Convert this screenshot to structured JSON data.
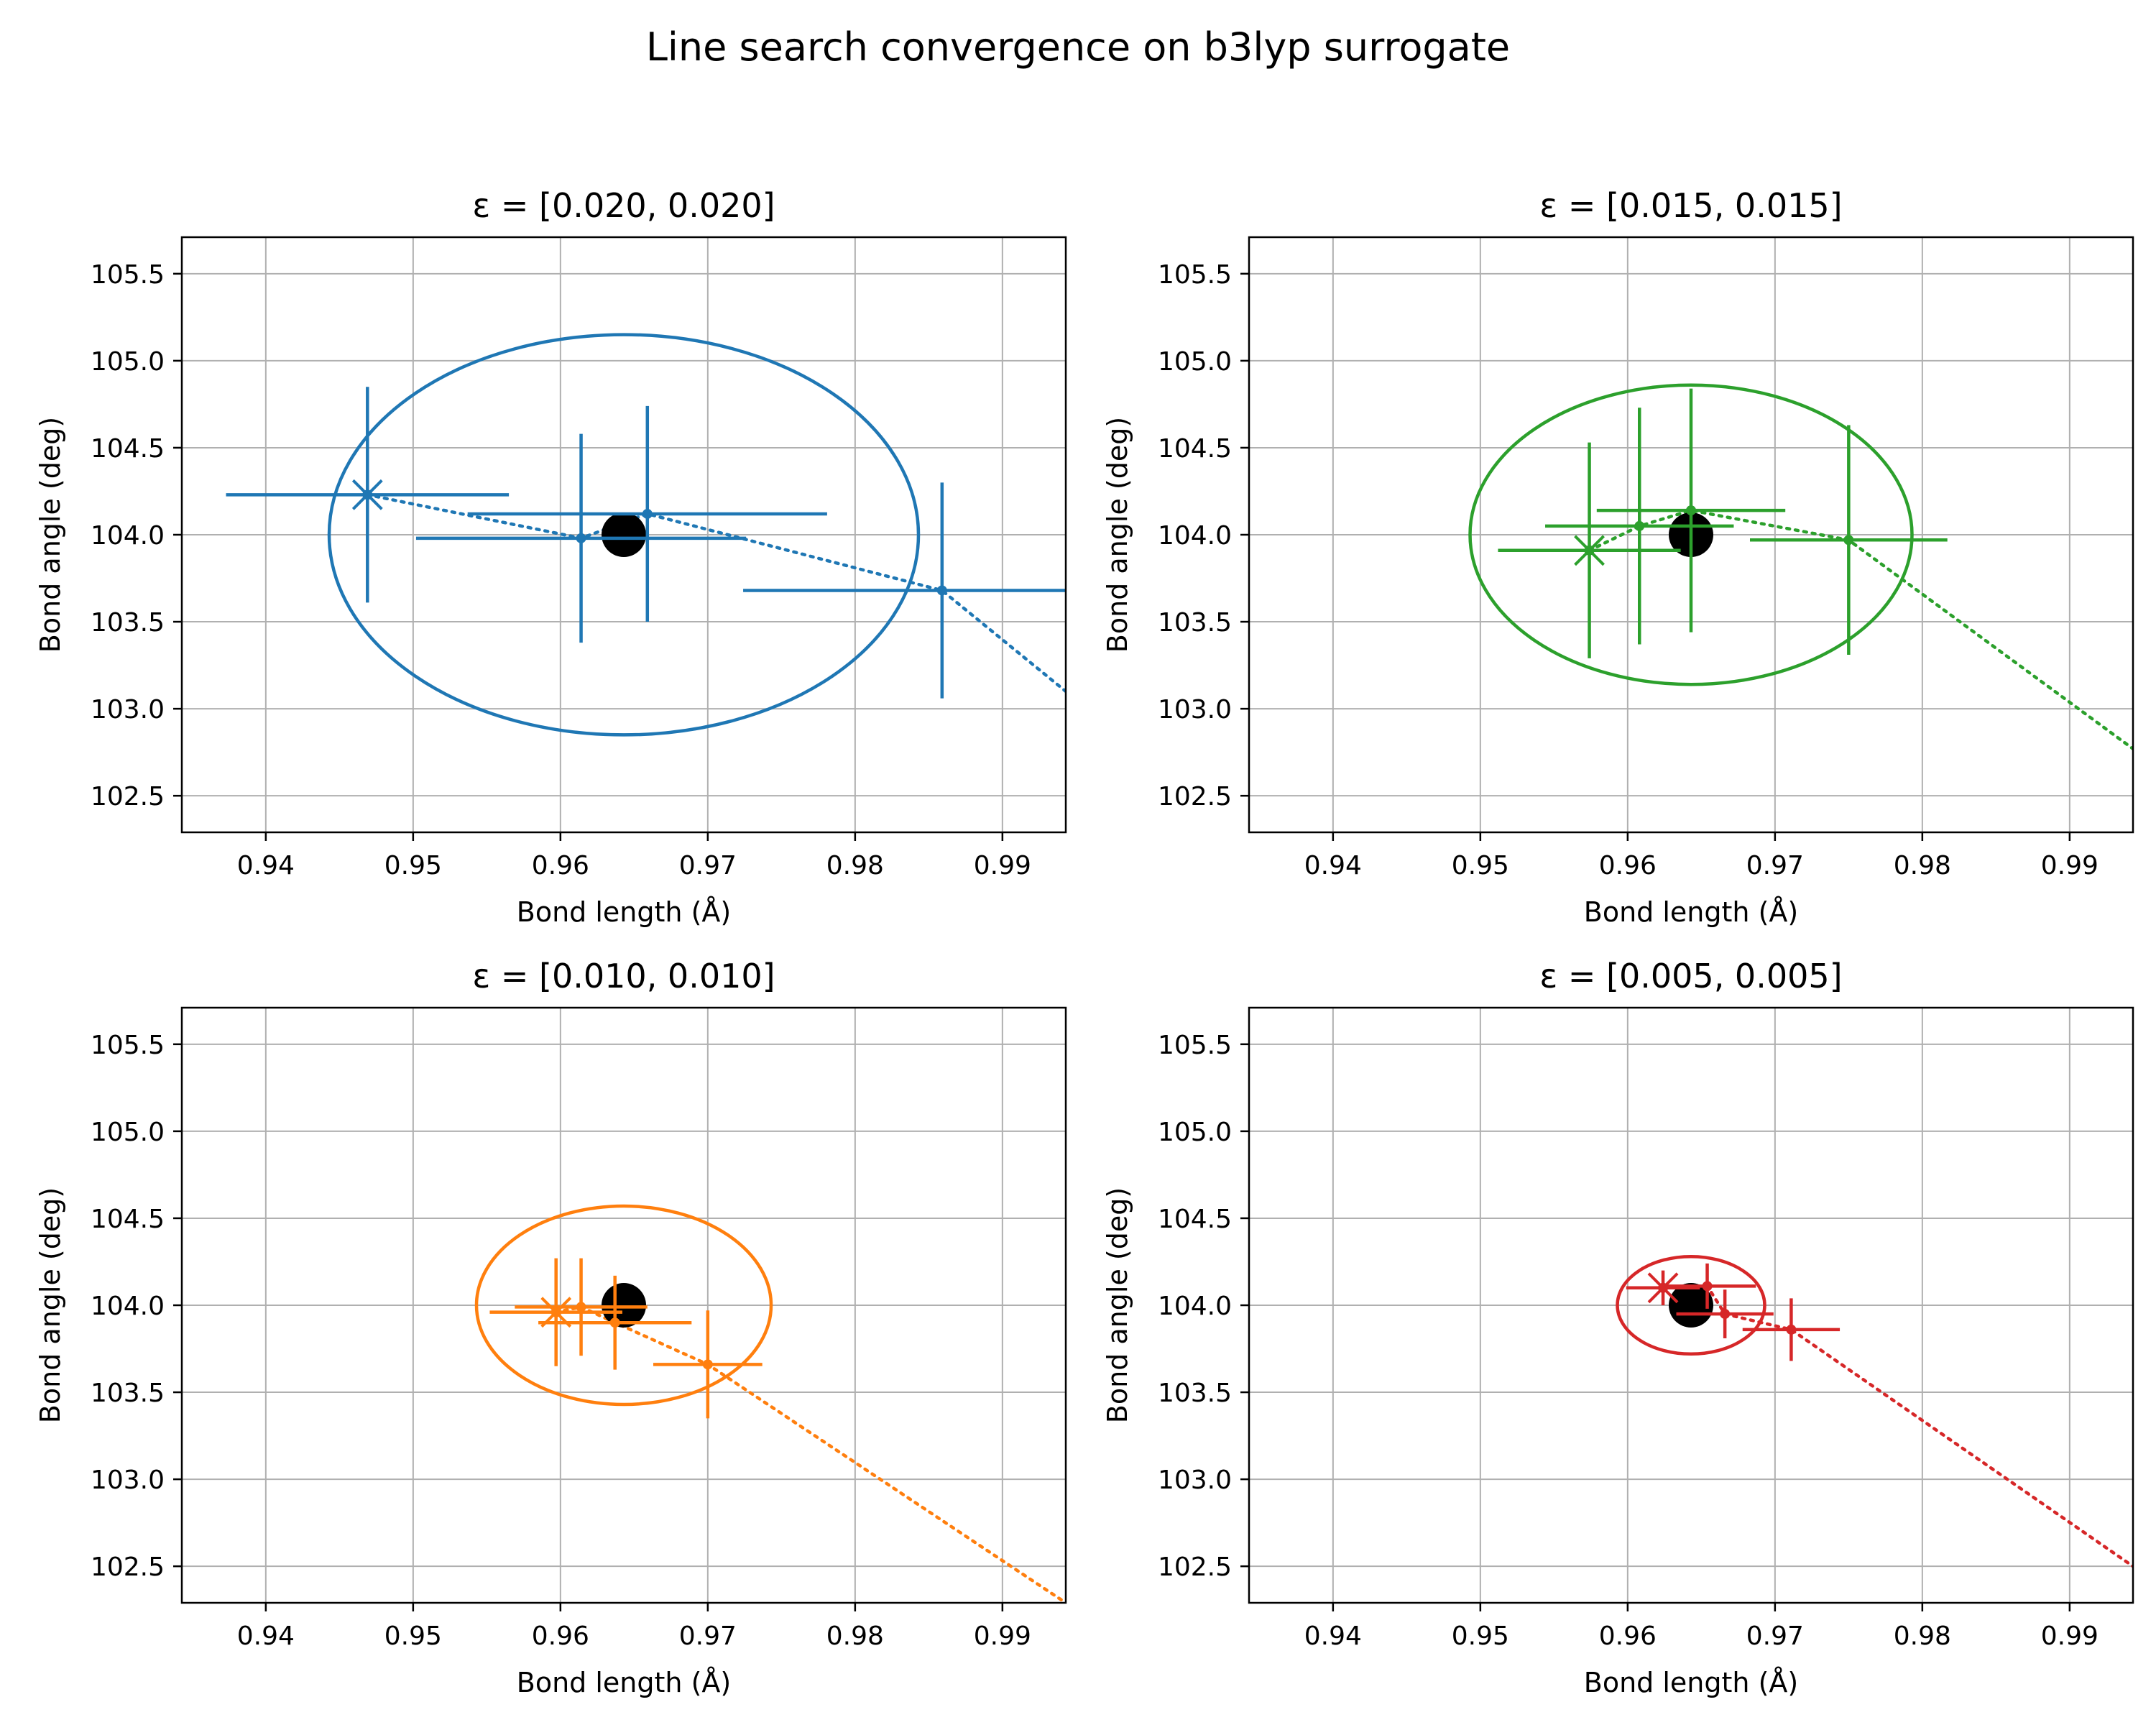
{
  "figure": {
    "title": "Line search convergence on b3lyp surrogate"
  },
  "colors": {
    "grid": "#b0b0b0",
    "axes": "#000000",
    "target": "#000000"
  },
  "chart_data": [
    {
      "type": "scatter",
      "title": "ε = [0.020, 0.020]",
      "xlabel": "Bond length (Å)",
      "ylabel": "Bond angle (deg)",
      "xlim": [
        0.9343,
        0.9943
      ],
      "ylim": [
        102.29,
        105.71
      ],
      "xticks": [
        0.94,
        0.95,
        0.96,
        0.97,
        0.98,
        0.99
      ],
      "xtick_labels": [
        "0.94",
        "0.95",
        "0.96",
        "0.97",
        "0.98",
        "0.99"
      ],
      "yticks": [
        102.5,
        103.0,
        103.5,
        104.0,
        104.5,
        105.0,
        105.5
      ],
      "ytick_labels": [
        "102.5",
        "103.0",
        "103.5",
        "104.0",
        "104.5",
        "105.0",
        "105.5"
      ],
      "grid": true,
      "color": "#1f77b4",
      "target": {
        "x": 0.9643,
        "y": 104.0
      },
      "ellipse": {
        "cx": 0.9643,
        "cy": 104.0,
        "rx": 0.02,
        "ry": 1.15
      },
      "start": {
        "x": 0.9469,
        "y": 104.23
      },
      "points": [
        {
          "x": 0.9469,
          "y": 104.23,
          "xerr": 0.0096,
          "yerr": 0.62
        },
        {
          "x": 0.9614,
          "y": 103.98,
          "xerr": 0.0112,
          "yerr": 0.6
        },
        {
          "x": 0.9659,
          "y": 104.12,
          "xerr": 0.0122,
          "yerr": 0.62
        },
        {
          "x": 0.9859,
          "y": 103.68,
          "xerr": 0.0135,
          "yerr": 0.62
        }
      ],
      "trajectory": [
        {
          "x": 0.9469,
          "y": 104.23
        },
        {
          "x": 0.9614,
          "y": 103.98
        },
        {
          "x": 0.9659,
          "y": 104.12
        },
        {
          "x": 0.9859,
          "y": 103.68
        },
        {
          "x": 0.9943,
          "y": 103.1
        }
      ]
    },
    {
      "type": "scatter",
      "title": "ε = [0.015, 0.015]",
      "xlabel": "Bond length (Å)",
      "ylabel": "Bond angle (deg)",
      "xlim": [
        0.9343,
        0.9943
      ],
      "ylim": [
        102.29,
        105.71
      ],
      "xticks": [
        0.94,
        0.95,
        0.96,
        0.97,
        0.98,
        0.99
      ],
      "xtick_labels": [
        "0.94",
        "0.95",
        "0.96",
        "0.97",
        "0.98",
        "0.99"
      ],
      "yticks": [
        102.5,
        103.0,
        103.5,
        104.0,
        104.5,
        105.0,
        105.5
      ],
      "ytick_labels": [
        "102.5",
        "103.0",
        "103.5",
        "104.0",
        "104.5",
        "105.0",
        "105.5"
      ],
      "grid": true,
      "color": "#2ca02c",
      "target": {
        "x": 0.9643,
        "y": 104.0
      },
      "ellipse": {
        "cx": 0.9643,
        "cy": 104.0,
        "rx": 0.015,
        "ry": 0.86
      },
      "start": {
        "x": 0.9574,
        "y": 103.91
      },
      "points": [
        {
          "x": 0.9574,
          "y": 103.91,
          "xerr": 0.0062,
          "yerr": 0.62
        },
        {
          "x": 0.9608,
          "y": 104.05,
          "xerr": 0.0064,
          "yerr": 0.68
        },
        {
          "x": 0.9643,
          "y": 104.14,
          "xerr": 0.0064,
          "yerr": 0.7
        },
        {
          "x": 0.975,
          "y": 103.97,
          "xerr": 0.0067,
          "yerr": 0.66
        }
      ],
      "trajectory": [
        {
          "x": 0.9574,
          "y": 103.91
        },
        {
          "x": 0.9608,
          "y": 104.05
        },
        {
          "x": 0.9643,
          "y": 104.14
        },
        {
          "x": 0.975,
          "y": 103.97
        },
        {
          "x": 0.9943,
          "y": 102.77
        }
      ]
    },
    {
      "type": "scatter",
      "title": "ε = [0.010, 0.010]",
      "xlabel": "Bond length (Å)",
      "ylabel": "Bond angle (deg)",
      "xlim": [
        0.9343,
        0.9943
      ],
      "ylim": [
        102.29,
        105.71
      ],
      "xticks": [
        0.94,
        0.95,
        0.96,
        0.97,
        0.98,
        0.99
      ],
      "xtick_labels": [
        "0.94",
        "0.95",
        "0.96",
        "0.97",
        "0.98",
        "0.99"
      ],
      "yticks": [
        102.5,
        103.0,
        103.5,
        104.0,
        104.5,
        105.0,
        105.5
      ],
      "ytick_labels": [
        "102.5",
        "103.0",
        "103.5",
        "104.0",
        "104.5",
        "105.0",
        "105.5"
      ],
      "grid": true,
      "color": "#ff7f0e",
      "target": {
        "x": 0.9643,
        "y": 104.0
      },
      "ellipse": {
        "cx": 0.9643,
        "cy": 104.0,
        "rx": 0.01,
        "ry": 0.57
      },
      "start": {
        "x": 0.9597,
        "y": 103.96
      },
      "points": [
        {
          "x": 0.9597,
          "y": 103.96,
          "xerr": 0.0045,
          "yerr": 0.31
        },
        {
          "x": 0.9614,
          "y": 103.99,
          "xerr": 0.0045,
          "yerr": 0.28
        },
        {
          "x": 0.9637,
          "y": 103.9,
          "xerr": 0.0052,
          "yerr": 0.27
        },
        {
          "x": 0.97,
          "y": 103.66,
          "xerr": 0.0037,
          "yerr": 0.31
        }
      ],
      "trajectory": [
        {
          "x": 0.9597,
          "y": 103.96
        },
        {
          "x": 0.9614,
          "y": 103.99
        },
        {
          "x": 0.9637,
          "y": 103.9
        },
        {
          "x": 0.97,
          "y": 103.66
        },
        {
          "x": 0.9943,
          "y": 102.29
        }
      ]
    },
    {
      "type": "scatter",
      "title": "ε = [0.005, 0.005]",
      "xlabel": "Bond length (Å)",
      "ylabel": "Bond angle (deg)",
      "xlim": [
        0.9343,
        0.9943
      ],
      "ylim": [
        102.29,
        105.71
      ],
      "xticks": [
        0.94,
        0.95,
        0.96,
        0.97,
        0.98,
        0.99
      ],
      "xtick_labels": [
        "0.94",
        "0.95",
        "0.96",
        "0.97",
        "0.98",
        "0.99"
      ],
      "yticks": [
        102.5,
        103.0,
        103.5,
        104.0,
        104.5,
        105.0,
        105.5
      ],
      "ytick_labels": [
        "102.5",
        "103.0",
        "103.5",
        "104.0",
        "104.5",
        "105.0",
        "105.5"
      ],
      "grid": true,
      "color": "#d62728",
      "target": {
        "x": 0.9643,
        "y": 104.0
      },
      "ellipse": {
        "cx": 0.9643,
        "cy": 104.0,
        "rx": 0.005,
        "ry": 0.28
      },
      "start": {
        "x": 0.9624,
        "y": 104.1
      },
      "points": [
        {
          "x": 0.9624,
          "y": 104.1,
          "xerr": 0.0025,
          "yerr": 0.1
        },
        {
          "x": 0.9654,
          "y": 104.11,
          "xerr": 0.0033,
          "yerr": 0.13
        },
        {
          "x": 0.9666,
          "y": 103.95,
          "xerr": 0.0033,
          "yerr": 0.14
        },
        {
          "x": 0.9711,
          "y": 103.86,
          "xerr": 0.0033,
          "yerr": 0.18
        }
      ],
      "trajectory": [
        {
          "x": 0.9624,
          "y": 104.1
        },
        {
          "x": 0.9654,
          "y": 104.11
        },
        {
          "x": 0.9666,
          "y": 103.95
        },
        {
          "x": 0.9711,
          "y": 103.86
        },
        {
          "x": 0.9943,
          "y": 102.5
        }
      ]
    }
  ]
}
